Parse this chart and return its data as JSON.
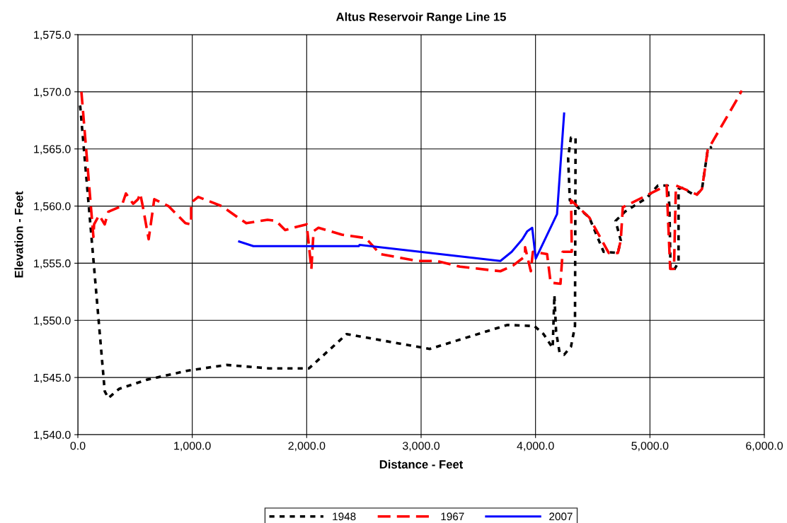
{
  "chart_data": {
    "type": "line",
    "title": "Altus Reservoir Range Line 15",
    "xlabel": "Distance - Feet",
    "ylabel": "Elevation - Feet",
    "xlim": [
      0,
      6000
    ],
    "ylim": [
      1540,
      1575
    ],
    "xticks": [
      {
        "value": 0,
        "label": "0.0"
      },
      {
        "value": 1000,
        "label": "1,000.0"
      },
      {
        "value": 2000,
        "label": "2,000.0"
      },
      {
        "value": 3000,
        "label": "3,000.0"
      },
      {
        "value": 4000,
        "label": "4,000.0"
      },
      {
        "value": 5000,
        "label": "5,000.0"
      },
      {
        "value": 6000,
        "label": "6,000.0"
      }
    ],
    "yticks": [
      {
        "value": 1540,
        "label": "1,540.0"
      },
      {
        "value": 1545,
        "label": "1,545.0"
      },
      {
        "value": 1550,
        "label": "1,550.0"
      },
      {
        "value": 1555,
        "label": "1,555.0"
      },
      {
        "value": 1560,
        "label": "1,560.0"
      },
      {
        "value": 1565,
        "label": "1,565.0"
      },
      {
        "value": 1570,
        "label": "1,570.0"
      },
      {
        "value": 1575,
        "label": "1,575.0"
      }
    ],
    "grid": true,
    "legend": "bottom",
    "marker": "none",
    "series": [
      {
        "name": "1948",
        "color": "#000000",
        "line_style": "dotted",
        "x": [
          20,
          235,
          266,
          360,
          600,
          960,
          1300,
          1670,
          2020,
          2350,
          3075,
          3755,
          3990,
          4070,
          4150,
          4165,
          4180,
          4210,
          4250,
          4310,
          4345,
          4350,
          4310,
          4285,
          4300,
          4470,
          4595,
          4720,
          4745,
          4700,
          4780,
          4970,
          5070,
          5155,
          5170,
          5180,
          5210,
          5250,
          5250,
          5280,
          5400,
          5455,
          5505,
          5540
        ],
        "values": [
          1568.8,
          1543.8,
          1543.2,
          1544.0,
          1544.8,
          1545.6,
          1546.1,
          1545.8,
          1545.8,
          1548.8,
          1547.5,
          1549.6,
          1549.5,
          1548.8,
          1547.6,
          1552.2,
          1549.0,
          1547.2,
          1547.0,
          1547.7,
          1549.5,
          1566.0,
          1566.0,
          1564.2,
          1560.5,
          1559.0,
          1556.0,
          1555.9,
          1557.0,
          1558.7,
          1559.5,
          1560.7,
          1561.8,
          1561.8,
          1560.0,
          1554.5,
          1554.4,
          1555.1,
          1561.5,
          1561.6,
          1560.9,
          1561.5,
          1564.9,
          1565.2
        ]
      },
      {
        "name": "1967",
        "color": "#ff0000",
        "line_style": "dashed",
        "x": [
          31,
          136,
          142,
          186,
          235,
          266,
          383,
          420,
          483,
          526,
          545,
          569,
          619,
          668,
          792,
          940,
          990,
          990,
          1052,
          1256,
          1472,
          1658,
          1732,
          1812,
          1918,
          2000,
          2041,
          2060,
          2103,
          2307,
          2517,
          2597,
          2641,
          2970,
          3136,
          3340,
          3693,
          3804,
          3909,
          3909,
          3959,
          3977,
          4101,
          4132,
          4218,
          4237,
          4317,
          4311,
          4470,
          4640,
          4720,
          4745,
          4763,
          5146,
          5177,
          5210,
          5227,
          5300,
          5412,
          5455,
          5505,
          5765,
          5802
        ],
        "values": [
          1570.0,
          1557.3,
          1558.4,
          1559.2,
          1558.4,
          1559.5,
          1560.0,
          1561.1,
          1560.2,
          1560.6,
          1561.1,
          1559.9,
          1557.1,
          1560.6,
          1560.0,
          1558.5,
          1558.4,
          1560.3,
          1560.8,
          1560.0,
          1558.5,
          1558.8,
          1558.7,
          1557.9,
          1558.2,
          1558.4,
          1554.5,
          1557.8,
          1558.1,
          1557.5,
          1557.2,
          1556.3,
          1555.8,
          1555.2,
          1555.2,
          1554.7,
          1554.3,
          1554.8,
          1555.6,
          1556.4,
          1554.3,
          1556.0,
          1555.8,
          1553.3,
          1553.2,
          1556.0,
          1556.0,
          1560.5,
          1559.0,
          1555.9,
          1555.9,
          1557.0,
          1559.9,
          1561.8,
          1554.5,
          1554.5,
          1561.8,
          1561.5,
          1561.0,
          1561.5,
          1564.9,
          1569.4,
          1570.1
        ]
      },
      {
        "name": "2007",
        "color": "#0000ff",
        "line_style": "solid",
        "x": [
          1410,
          1534,
          2289,
          2456,
          2462,
          3693,
          3792,
          3885,
          3928,
          3971,
          4002,
          4188,
          4250
        ],
        "values": [
          1556.9,
          1556.5,
          1556.5,
          1556.5,
          1556.6,
          1555.2,
          1556.0,
          1557.1,
          1557.8,
          1558.1,
          1555.4,
          1559.3,
          1568.1
        ]
      }
    ]
  }
}
